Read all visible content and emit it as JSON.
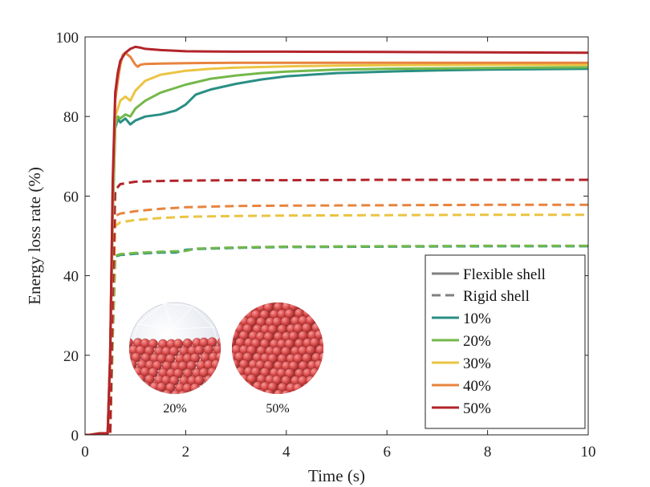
{
  "chart_data": {
    "type": "line",
    "title": "",
    "xlabel": "Time (s)",
    "ylabel": "Energy loss rate (%)",
    "xlim": [
      0,
      10
    ],
    "ylim": [
      0,
      100
    ],
    "xticks": [
      0,
      2,
      4,
      6,
      8,
      10
    ],
    "yticks": [
      0,
      20,
      40,
      60,
      80,
      100
    ],
    "grid": false,
    "legend_position": "bottom-right",
    "legend": {
      "styles": [
        {
          "name": "Flexible shell",
          "dash": "solid",
          "color": "#808080"
        },
        {
          "name": "Rigid shell",
          "dash": "dashed",
          "color": "#808080"
        }
      ],
      "fills": [
        {
          "name": "10%",
          "color": "#2a8f84"
        },
        {
          "name": "20%",
          "color": "#74b84a"
        },
        {
          "name": "30%",
          "color": "#ebc443"
        },
        {
          "name": "40%",
          "color": "#e7843e"
        },
        {
          "name": "50%",
          "color": "#b2242a"
        }
      ]
    },
    "series": [
      {
        "name": "10% flexible",
        "fill": "10%",
        "style": "solid",
        "color": "#2a8f84",
        "x": [
          0,
          0.1,
          0.3,
          0.45,
          0.5,
          0.55,
          0.6,
          0.65,
          0.7,
          0.8,
          0.9,
          1.0,
          1.2,
          1.5,
          1.8,
          2.0,
          2.2,
          2.5,
          3.0,
          3.5,
          4.0,
          5.0,
          6.0,
          7.0,
          8.0,
          9.0,
          10.0
        ],
        "y": [
          0,
          0,
          0.4,
          0.4,
          20,
          55,
          77,
          79.5,
          78.5,
          79.5,
          78,
          79,
          80,
          80.5,
          81.5,
          83,
          85.5,
          86.8,
          88.2,
          89.3,
          90.1,
          90.9,
          91.3,
          91.6,
          91.8,
          91.9,
          92
        ]
      },
      {
        "name": "20% flexible",
        "fill": "20%",
        "style": "solid",
        "color": "#74b84a",
        "x": [
          0,
          0.1,
          0.3,
          0.45,
          0.5,
          0.55,
          0.6,
          0.65,
          0.7,
          0.8,
          0.9,
          1.0,
          1.2,
          1.5,
          1.8,
          2.0,
          2.5,
          3.0,
          3.5,
          4.0,
          5.0,
          6.0,
          7.0,
          8.0,
          9.0,
          10.0
        ],
        "y": [
          0,
          0,
          0.4,
          0.4,
          20,
          55,
          78,
          80,
          79.5,
          80.5,
          80,
          82,
          84,
          86,
          87.2,
          88,
          89.5,
          90.3,
          90.9,
          91.3,
          91.8,
          92,
          92.1,
          92.2,
          92.3,
          92.4
        ]
      },
      {
        "name": "30% flexible",
        "fill": "30%",
        "style": "solid",
        "color": "#ebc443",
        "x": [
          0,
          0.1,
          0.3,
          0.45,
          0.5,
          0.55,
          0.6,
          0.65,
          0.7,
          0.8,
          0.9,
          1.0,
          1.2,
          1.5,
          2.0,
          2.5,
          3.0,
          4.0,
          5.0,
          6.0,
          8.0,
          10.0
        ],
        "y": [
          0,
          0,
          0.4,
          0.4,
          20,
          60,
          80,
          82,
          84,
          85,
          84,
          86.5,
          89,
          90.5,
          91.5,
          92,
          92.3,
          92.6,
          92.8,
          92.9,
          93,
          93
        ]
      },
      {
        "name": "40% flexible",
        "fill": "40%",
        "style": "solid",
        "color": "#e7843e",
        "x": [
          0,
          0.1,
          0.3,
          0.45,
          0.5,
          0.55,
          0.6,
          0.65,
          0.7,
          0.75,
          0.8,
          0.9,
          1.0,
          1.05,
          1.1,
          1.2,
          1.5,
          2.0,
          3.0,
          4.0,
          6.0,
          8.0,
          10.0
        ],
        "y": [
          0,
          0,
          0.4,
          0.4,
          20,
          62,
          84,
          89,
          93,
          95.5,
          96,
          95,
          93,
          92.5,
          93,
          93.2,
          93.3,
          93.4,
          93.5,
          93.5,
          93.5,
          93.5,
          93.5
        ]
      },
      {
        "name": "50% flexible",
        "fill": "50%",
        "style": "solid",
        "color": "#b2242a",
        "x": [
          0,
          0.1,
          0.3,
          0.45,
          0.5,
          0.55,
          0.6,
          0.65,
          0.7,
          0.8,
          0.9,
          1.0,
          1.1,
          1.2,
          1.5,
          2.0,
          3.0,
          4.0,
          6.0,
          8.0,
          10.0
        ],
        "y": [
          0,
          0,
          0.4,
          0.4,
          20,
          64,
          86,
          91,
          94,
          96,
          97,
          97.5,
          97.3,
          97,
          96.7,
          96.4,
          96.3,
          96.3,
          96.2,
          96.1,
          96
        ]
      },
      {
        "name": "10% rigid",
        "fill": "10%",
        "style": "dashed",
        "color": "#2a8f84",
        "x": [
          0,
          0.5,
          0.55,
          0.6,
          0.7,
          1.0,
          1.5,
          1.8,
          2.0,
          2.2,
          3.0,
          4.0,
          6.0,
          8.0,
          10.0
        ],
        "y": [
          0,
          0,
          25,
          44.8,
          45.2,
          45.5,
          45.8,
          45.8,
          46.5,
          46.7,
          47,
          47.2,
          47.3,
          47.4,
          47.4
        ]
      },
      {
        "name": "20% rigid",
        "fill": "20%",
        "style": "dashed",
        "color": "#74b84a",
        "x": [
          0,
          0.5,
          0.55,
          0.6,
          0.7,
          1.0,
          1.5,
          2.0,
          2.2,
          3.0,
          4.0,
          6.0,
          8.0,
          10.0
        ],
        "y": [
          0,
          0,
          25,
          45,
          45.4,
          45.7,
          46,
          46.2,
          46.8,
          47.1,
          47.3,
          47.4,
          47.5,
          47.5
        ]
      },
      {
        "name": "30% rigid",
        "fill": "30%",
        "style": "dashed",
        "color": "#ebc443",
        "x": [
          0,
          0.5,
          0.55,
          0.6,
          0.7,
          1.0,
          1.5,
          2.0,
          3.0,
          4.0,
          6.0,
          8.0,
          10.0
        ],
        "y": [
          0,
          0,
          30,
          52.5,
          53.4,
          54,
          54.5,
          54.8,
          55,
          55.1,
          55.2,
          55.3,
          55.3
        ]
      },
      {
        "name": "40% rigid",
        "fill": "40%",
        "style": "dashed",
        "color": "#e7843e",
        "x": [
          0,
          0.5,
          0.55,
          0.6,
          0.7,
          1.0,
          1.5,
          2.0,
          3.0,
          4.0,
          6.0,
          8.0,
          10.0
        ],
        "y": [
          0,
          0,
          32,
          55,
          55.6,
          56.2,
          56.8,
          57.2,
          57.5,
          57.6,
          57.7,
          57.8,
          57.8
        ]
      },
      {
        "name": "50% rigid",
        "fill": "50%",
        "style": "dashed",
        "color": "#b2242a",
        "x": [
          0,
          0.5,
          0.55,
          0.6,
          0.7,
          1.0,
          1.5,
          2.0,
          3.0,
          4.0,
          6.0,
          8.0,
          10.0
        ],
        "y": [
          0,
          0,
          35,
          61.5,
          63,
          63.6,
          63.8,
          63.9,
          64,
          64,
          64.1,
          64.1,
          64.1
        ]
      }
    ],
    "insets": [
      {
        "label": "20%",
        "kind": "partially-filled flexible shell"
      },
      {
        "label": "50%",
        "kind": "fully-filled flexible shell"
      }
    ],
    "colors": {
      "axis": "#222222",
      "legend_border": "#222222",
      "sphere": "#d94a4a",
      "sphere_dark": "#8e2a2a",
      "shell": "#dfe3ec"
    }
  }
}
